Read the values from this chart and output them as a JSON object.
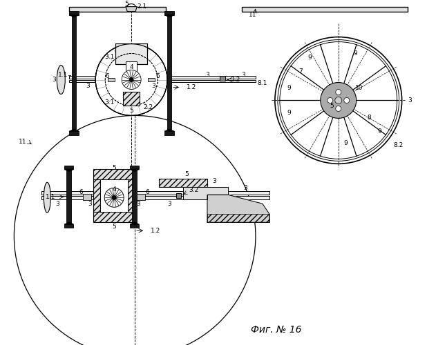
{
  "title": "Фиг. № 16",
  "bg": "#ffffff",
  "lc": "#000000"
}
